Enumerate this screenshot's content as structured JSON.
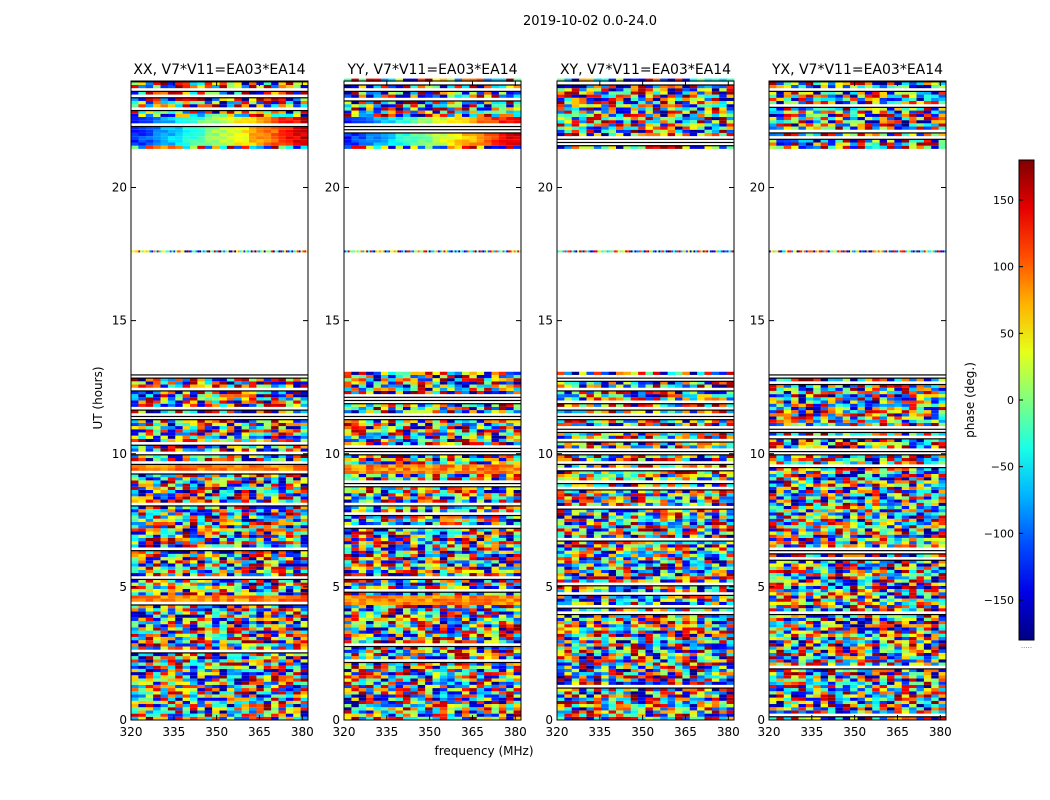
{
  "figure": {
    "suptitle": "2019-10-02 0.0-24.0",
    "xlabel": "frequency (MHz)",
    "ylabel": "UT (hours)"
  },
  "colorbar": {
    "label": "phase (deg.)",
    "range": [
      -180,
      180
    ],
    "ticks": [
      150,
      100,
      50,
      0,
      -50,
      -100,
      -150
    ],
    "tick_labels": [
      "150",
      "100",
      "50",
      "0",
      "−50",
      "−100",
      "−150"
    ],
    "footer": "....."
  },
  "chart_data": [
    {
      "type": "heatmap",
      "title": "XX, V7*V11=EA03*EA14",
      "xlabel": "frequency (MHz)",
      "ylabel": "UT (hours)",
      "xlim": [
        320,
        382
      ],
      "ylim": [
        0,
        24
      ],
      "x_ticks": [
        320,
        335,
        350,
        365,
        380
      ],
      "y_ticks": [
        0,
        5,
        10,
        15,
        20
      ],
      "value": "phase (deg.)",
      "notes": "noisy phase data 0-13 h, gap 13-21.5 h, coherent phase ramp 21.5-22.5 h, data 22.5-24 h"
    },
    {
      "type": "heatmap",
      "title": "YY, V7*V11=EA03*EA14",
      "xlabel": "frequency (MHz)",
      "ylabel": "UT (hours)",
      "xlim": [
        320,
        382
      ],
      "ylim": [
        0,
        24
      ],
      "x_ticks": [
        320,
        335,
        350,
        365,
        380
      ],
      "y_ticks": [
        0,
        5,
        10,
        15,
        20
      ],
      "value": "phase (deg.)",
      "notes": "noisy phase data 0-13 h, gap 13-21.5 h, coherent phase ramp 21.5-22.5 h, data 22.5-24 h"
    },
    {
      "type": "heatmap",
      "title": "XY, V7*V11=EA03*EA14",
      "xlabel": "frequency (MHz)",
      "ylabel": "UT (hours)",
      "xlim": [
        320,
        382
      ],
      "ylim": [
        0,
        24
      ],
      "x_ticks": [
        320,
        335,
        350,
        365,
        380
      ],
      "y_ticks": [
        0,
        5,
        10,
        15,
        20
      ],
      "value": "phase (deg.)",
      "notes": "noisy phase data 0-13 h, gap 13-21.5 h, noisy data 21.5-24 h"
    },
    {
      "type": "heatmap",
      "title": "YX, V7*V11=EA03*EA14",
      "xlabel": "frequency (MHz)",
      "ylabel": "UT (hours)",
      "xlim": [
        320,
        382
      ],
      "ylim": [
        0,
        24
      ],
      "x_ticks": [
        320,
        335,
        350,
        365,
        380
      ],
      "y_ticks": [
        0,
        5,
        10,
        15,
        20
      ],
      "value": "phase (deg.)",
      "notes": "noisy phase data 0-13 h, gap 13-21.5 h, noisy data 21.5-24 h"
    }
  ]
}
